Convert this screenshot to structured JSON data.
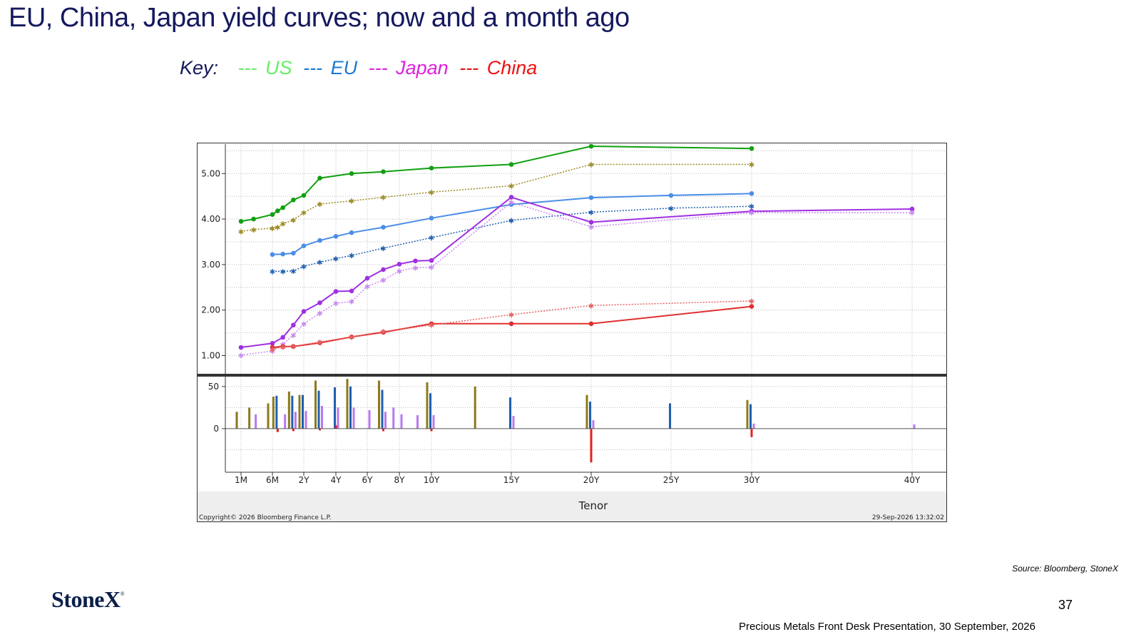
{
  "title": "EU, China, Japan yield curves; now and a month ago",
  "key": {
    "label": "Key:",
    "items": [
      {
        "dash": "---",
        "name": "US",
        "color": "#66ee66"
      },
      {
        "dash": "---",
        "name": "EU",
        "color": "#1f78d1"
      },
      {
        "dash": "---",
        "name": "Japan",
        "color": "#dd22dd"
      },
      {
        "dash": "---",
        "name": "China",
        "color": "#ee1111"
      }
    ]
  },
  "source": "Source: Bloomberg, StoneX",
  "logo": {
    "text": "StoneX",
    "mark": "®"
  },
  "page_number": "37",
  "footer": "Precious Metals Front Desk Presentation, 30 September, 2026",
  "chart_data": {
    "type": "line",
    "xlabel": "Tenor",
    "copyright": "Copyright© 2026 Bloomberg Finance L.P.",
    "timestamp": "29-Sep-2026 13:32:02",
    "x_ticks": [
      {
        "label": "1M",
        "t": 0.083
      },
      {
        "label": "6M",
        "t": 0.5
      },
      {
        "label": "2Y",
        "t": 2
      },
      {
        "label": "4Y",
        "t": 4
      },
      {
        "label": "6Y",
        "t": 6
      },
      {
        "label": "8Y",
        "t": 8
      },
      {
        "label": "10Y",
        "t": 10
      },
      {
        "label": "15Y",
        "t": 15
      },
      {
        "label": "20Y",
        "t": 20
      },
      {
        "label": "25Y",
        "t": 25
      },
      {
        "label": "30Y",
        "t": 30
      },
      {
        "label": "40Y",
        "t": 40
      }
    ],
    "upper_panel": {
      "ylim": [
        0.6,
        5.6
      ],
      "y_ticks": [
        "1.00",
        "2.00",
        "3.00",
        "4.00",
        "5.00"
      ],
      "series": [
        {
          "key": "us_now",
          "color": "#10a010",
          "style": "solid",
          "marker": "dot",
          "points": [
            [
              0.083,
              3.95
            ],
            [
              0.25,
              4.0
            ],
            [
              0.5,
              4.1
            ],
            [
              0.75,
              4.18
            ],
            [
              1,
              4.25
            ],
            [
              1.5,
              4.42
            ],
            [
              2,
              4.52
            ],
            [
              3,
              4.9
            ],
            [
              5,
              5.0
            ],
            [
              7,
              5.04
            ],
            [
              10,
              5.12
            ],
            [
              15,
              5.2
            ],
            [
              20,
              5.6
            ],
            [
              30,
              5.55
            ]
          ]
        },
        {
          "key": "us_month_ago",
          "color": "#9a8a20",
          "style": "dotted",
          "marker": "star",
          "points": [
            [
              0.083,
              3.73
            ],
            [
              0.25,
              3.77
            ],
            [
              0.5,
              3.8
            ],
            [
              0.75,
              3.82
            ],
            [
              1,
              3.9
            ],
            [
              1.5,
              3.98
            ],
            [
              2,
              4.14
            ],
            [
              3,
              4.33
            ],
            [
              5,
              4.4
            ],
            [
              7,
              4.48
            ],
            [
              10,
              4.59
            ],
            [
              15,
              4.73
            ],
            [
              20,
              5.2
            ],
            [
              30,
              5.2
            ]
          ]
        },
        {
          "key": "eu_now",
          "color": "#4a8ee8",
          "style": "solid",
          "marker": "dot",
          "points": [
            [
              0.5,
              3.22
            ],
            [
              1,
              3.23
            ],
            [
              1.5,
              3.25
            ],
            [
              2,
              3.41
            ],
            [
              3,
              3.53
            ],
            [
              4,
              3.62
            ],
            [
              5,
              3.7
            ],
            [
              7,
              3.82
            ],
            [
              10,
              4.02
            ],
            [
              15,
              4.32
            ],
            [
              20,
              4.47
            ],
            [
              25,
              4.52
            ],
            [
              30,
              4.56
            ]
          ]
        },
        {
          "key": "eu_month_ago",
          "color": "#1f5fb0",
          "style": "dotted",
          "marker": "star",
          "points": [
            [
              0.5,
              2.85
            ],
            [
              1,
              2.85
            ],
            [
              1.5,
              2.86
            ],
            [
              2,
              2.96
            ],
            [
              3,
              3.05
            ],
            [
              4,
              3.13
            ],
            [
              5,
              3.2
            ],
            [
              7,
              3.36
            ],
            [
              10,
              3.59
            ],
            [
              15,
              3.97
            ],
            [
              20,
              4.15
            ],
            [
              25,
              4.24
            ],
            [
              30,
              4.28
            ]
          ]
        },
        {
          "key": "japan_now",
          "color": "#a030e0",
          "style": "solid",
          "marker": "dot",
          "points": [
            [
              0.083,
              1.18
            ],
            [
              0.5,
              1.27
            ],
            [
              1,
              1.4
            ],
            [
              1.5,
              1.67
            ],
            [
              2,
              1.97
            ],
            [
              3,
              2.16
            ],
            [
              4,
              2.41
            ],
            [
              5,
              2.42
            ],
            [
              6,
              2.7
            ],
            [
              7,
              2.89
            ],
            [
              8,
              3.01
            ],
            [
              9,
              3.08
            ],
            [
              10,
              3.09
            ],
            [
              15,
              4.48
            ],
            [
              20,
              3.93
            ],
            [
              30,
              4.17
            ],
            [
              40,
              4.22
            ]
          ]
        },
        {
          "key": "japan_month_ago",
          "color": "#c888f0",
          "style": "dotted",
          "marker": "star",
          "points": [
            [
              0.083,
              1.01
            ],
            [
              0.5,
              1.1
            ],
            [
              1,
              1.25
            ],
            [
              1.5,
              1.45
            ],
            [
              2,
              1.7
            ],
            [
              3,
              1.93
            ],
            [
              4,
              2.15
            ],
            [
              5,
              2.19
            ],
            [
              6,
              2.52
            ],
            [
              7,
              2.66
            ],
            [
              8,
              2.86
            ],
            [
              9,
              2.93
            ],
            [
              10,
              2.94
            ],
            [
              15,
              4.37
            ],
            [
              20,
              3.83
            ],
            [
              30,
              4.14
            ],
            [
              40,
              4.14
            ]
          ]
        },
        {
          "key": "china_now",
          "color": "#e03030",
          "style": "solid",
          "marker": "dot",
          "points": [
            [
              0.5,
              1.18
            ],
            [
              1,
              1.2
            ],
            [
              1.5,
              1.2
            ],
            [
              3,
              1.28
            ],
            [
              5,
              1.41
            ],
            [
              7,
              1.51
            ],
            [
              10,
              1.7
            ],
            [
              15,
              1.7
            ],
            [
              20,
              1.7
            ],
            [
              30,
              2.08
            ]
          ]
        },
        {
          "key": "china_month_ago",
          "color": "#e86060",
          "style": "dotted",
          "marker": "star",
          "points": [
            [
              0.5,
              1.14
            ],
            [
              1,
              1.19
            ],
            [
              1.5,
              1.2
            ],
            [
              3,
              1.3
            ],
            [
              5,
              1.41
            ],
            [
              7,
              1.53
            ],
            [
              10,
              1.67
            ],
            [
              15,
              1.9
            ],
            [
              20,
              2.1
            ],
            [
              30,
              2.2
            ]
          ]
        }
      ]
    },
    "lower_panel": {
      "ylim": [
        -50,
        60
      ],
      "y_ticks": [
        "50",
        "0"
      ],
      "bars": [
        {
          "series": "US",
          "color": "#8a7a1a",
          "values": [
            [
              0.083,
              20
            ],
            [
              0.25,
              25
            ],
            [
              0.5,
              30
            ],
            [
              0.75,
              38
            ],
            [
              1.5,
              44
            ],
            [
              2,
              40
            ],
            [
              3,
              57
            ],
            [
              5,
              59
            ],
            [
              7,
              57
            ],
            [
              10,
              55
            ],
            [
              13,
              50
            ],
            [
              20,
              40
            ],
            [
              30,
              34
            ]
          ]
        },
        {
          "series": "EU",
          "color": "#1f5fb0",
          "values": [
            [
              0.75,
              39
            ],
            [
              1.5,
              39
            ],
            [
              2,
              40
            ],
            [
              3,
              45
            ],
            [
              4,
              49
            ],
            [
              5,
              50
            ],
            [
              7,
              46
            ],
            [
              10,
              42
            ],
            [
              15,
              37
            ],
            [
              20,
              32
            ],
            [
              25,
              30
            ],
            [
              30,
              29
            ]
          ]
        },
        {
          "series": "Japan",
          "color": "#b878f0",
          "values": [
            [
              0.25,
              17
            ],
            [
              1,
              17
            ],
            [
              1.5,
              20
            ],
            [
              2,
              21
            ],
            [
              3,
              27
            ],
            [
              4,
              25
            ],
            [
              5,
              25
            ],
            [
              6,
              22
            ],
            [
              7,
              20
            ],
            [
              7.5,
              25
            ],
            [
              8,
              17
            ],
            [
              9,
              16
            ],
            [
              10,
              16
            ],
            [
              15,
              15
            ],
            [
              20,
              10
            ],
            [
              30,
              6
            ],
            [
              40,
              5
            ]
          ]
        },
        {
          "series": "China",
          "color": "#e02020",
          "values": [
            [
              0.75,
              -4
            ],
            [
              1.5,
              -3
            ],
            [
              3,
              -2
            ],
            [
              4,
              4
            ],
            [
              7,
              -3
            ],
            [
              10,
              -3
            ],
            [
              20,
              -40
            ],
            [
              30,
              -10
            ]
          ]
        }
      ]
    }
  }
}
